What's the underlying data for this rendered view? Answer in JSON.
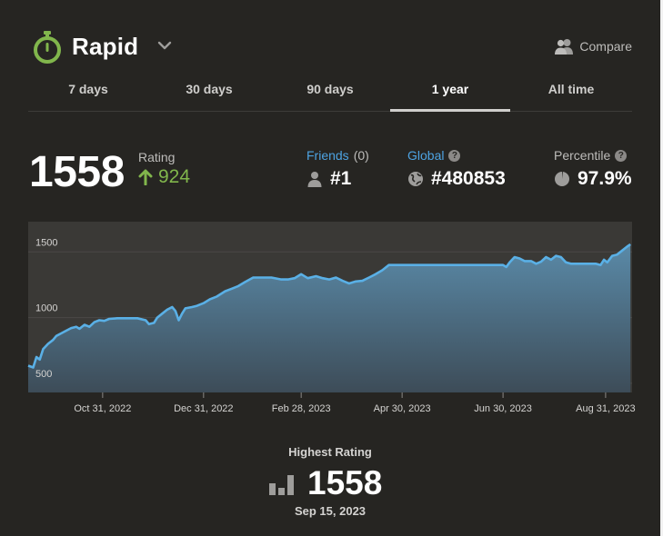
{
  "header": {
    "title": "Rapid",
    "compare_label": "Compare",
    "accent": "#81b64c"
  },
  "tabs": [
    {
      "label": "7 days",
      "active": false
    },
    {
      "label": "30 days",
      "active": false
    },
    {
      "label": "90 days",
      "active": false
    },
    {
      "label": "1 year",
      "active": true
    },
    {
      "label": "All time",
      "active": false
    }
  ],
  "stats": {
    "rating": "1558",
    "rating_label": "Rating",
    "rating_change": "924",
    "friends_label": "Friends",
    "friends_count": "(0)",
    "friends_rank": "#1",
    "global_label": "Global",
    "global_rank": "#480853",
    "percentile_label": "Percentile",
    "percentile_value": "97.9%"
  },
  "chart_data": {
    "type": "area",
    "ylim": [
      430,
      1730
    ],
    "xlim": [
      "2022-09-16",
      "2023-09-16"
    ],
    "yticks": [
      500,
      1000,
      1500
    ],
    "xticks": [
      {
        "label": "Oct 31, 2022",
        "date": "2022-10-31"
      },
      {
        "label": "Dec 31, 2022",
        "date": "2022-12-31"
      },
      {
        "label": "Feb 28, 2023",
        "date": "2023-02-28"
      },
      {
        "label": "Apr 30, 2023",
        "date": "2023-04-30"
      },
      {
        "label": "Jun 30, 2023",
        "date": "2023-06-30"
      },
      {
        "label": "Aug 31, 2023",
        "date": "2023-08-31"
      }
    ],
    "line_color": "#5ab0e6",
    "series": [
      {
        "points": [
          [
            "2022-09-16",
            634
          ],
          [
            "2022-09-19",
            620
          ],
          [
            "2022-09-21",
            700
          ],
          [
            "2022-09-23",
            680
          ],
          [
            "2022-09-25",
            760
          ],
          [
            "2022-09-28",
            800
          ],
          [
            "2022-10-01",
            830
          ],
          [
            "2022-10-03",
            860
          ],
          [
            "2022-10-06",
            880
          ],
          [
            "2022-10-09",
            900
          ],
          [
            "2022-10-12",
            920
          ],
          [
            "2022-10-15",
            930
          ],
          [
            "2022-10-17",
            915
          ],
          [
            "2022-10-20",
            945
          ],
          [
            "2022-10-23",
            930
          ],
          [
            "2022-10-26",
            965
          ],
          [
            "2022-10-29",
            980
          ],
          [
            "2022-11-01",
            975
          ],
          [
            "2022-11-04",
            990
          ],
          [
            "2022-11-09",
            995
          ],
          [
            "2022-11-15",
            995
          ],
          [
            "2022-11-21",
            995
          ],
          [
            "2022-11-26",
            980
          ],
          [
            "2022-11-28",
            950
          ],
          [
            "2022-12-01",
            960
          ],
          [
            "2022-12-03",
            1000
          ],
          [
            "2022-12-06",
            1030
          ],
          [
            "2022-12-09",
            1060
          ],
          [
            "2022-12-12",
            1080
          ],
          [
            "2022-12-14",
            1050
          ],
          [
            "2022-12-16",
            980
          ],
          [
            "2022-12-18",
            1030
          ],
          [
            "2022-12-20",
            1070
          ],
          [
            "2022-12-24",
            1080
          ],
          [
            "2022-12-27",
            1090
          ],
          [
            "2022-12-31",
            1110
          ],
          [
            "2023-01-04",
            1140
          ],
          [
            "2023-01-08",
            1160
          ],
          [
            "2023-01-13",
            1200
          ],
          [
            "2023-01-17",
            1220
          ],
          [
            "2023-01-21",
            1240
          ],
          [
            "2023-01-25",
            1270
          ],
          [
            "2023-01-30",
            1305
          ],
          [
            "2023-02-04",
            1305
          ],
          [
            "2023-02-10",
            1305
          ],
          [
            "2023-02-16",
            1290
          ],
          [
            "2023-02-20",
            1290
          ],
          [
            "2023-02-24",
            1300
          ],
          [
            "2023-02-28",
            1330
          ],
          [
            "2023-03-04",
            1300
          ],
          [
            "2023-03-09",
            1315
          ],
          [
            "2023-03-13",
            1300
          ],
          [
            "2023-03-17",
            1290
          ],
          [
            "2023-03-21",
            1305
          ],
          [
            "2023-03-25",
            1280
          ],
          [
            "2023-03-29",
            1260
          ],
          [
            "2023-04-02",
            1275
          ],
          [
            "2023-04-06",
            1280
          ],
          [
            "2023-04-10",
            1305
          ],
          [
            "2023-04-14",
            1330
          ],
          [
            "2023-04-18",
            1360
          ],
          [
            "2023-04-22",
            1400
          ],
          [
            "2023-04-30",
            1400
          ],
          [
            "2023-05-20",
            1400
          ],
          [
            "2023-06-10",
            1400
          ],
          [
            "2023-06-25",
            1400
          ],
          [
            "2023-06-30",
            1400
          ],
          [
            "2023-07-02",
            1385
          ],
          [
            "2023-07-04",
            1420
          ],
          [
            "2023-07-07",
            1460
          ],
          [
            "2023-07-10",
            1450
          ],
          [
            "2023-07-13",
            1430
          ],
          [
            "2023-07-17",
            1430
          ],
          [
            "2023-07-20",
            1410
          ],
          [
            "2023-07-23",
            1425
          ],
          [
            "2023-07-26",
            1460
          ],
          [
            "2023-07-29",
            1440
          ],
          [
            "2023-08-01",
            1470
          ],
          [
            "2023-08-04",
            1460
          ],
          [
            "2023-08-07",
            1420
          ],
          [
            "2023-08-10",
            1410
          ],
          [
            "2023-08-15",
            1410
          ],
          [
            "2023-08-20",
            1410
          ],
          [
            "2023-08-25",
            1410
          ],
          [
            "2023-08-28",
            1400
          ],
          [
            "2023-08-30",
            1440
          ],
          [
            "2023-09-01",
            1420
          ],
          [
            "2023-09-04",
            1470
          ],
          [
            "2023-09-07",
            1480
          ],
          [
            "2023-09-10",
            1510
          ],
          [
            "2023-09-13",
            1540
          ],
          [
            "2023-09-15",
            1558
          ]
        ]
      }
    ]
  },
  "highest": {
    "label": "Highest Rating",
    "value": "1558",
    "date": "Sep 15, 2023"
  }
}
